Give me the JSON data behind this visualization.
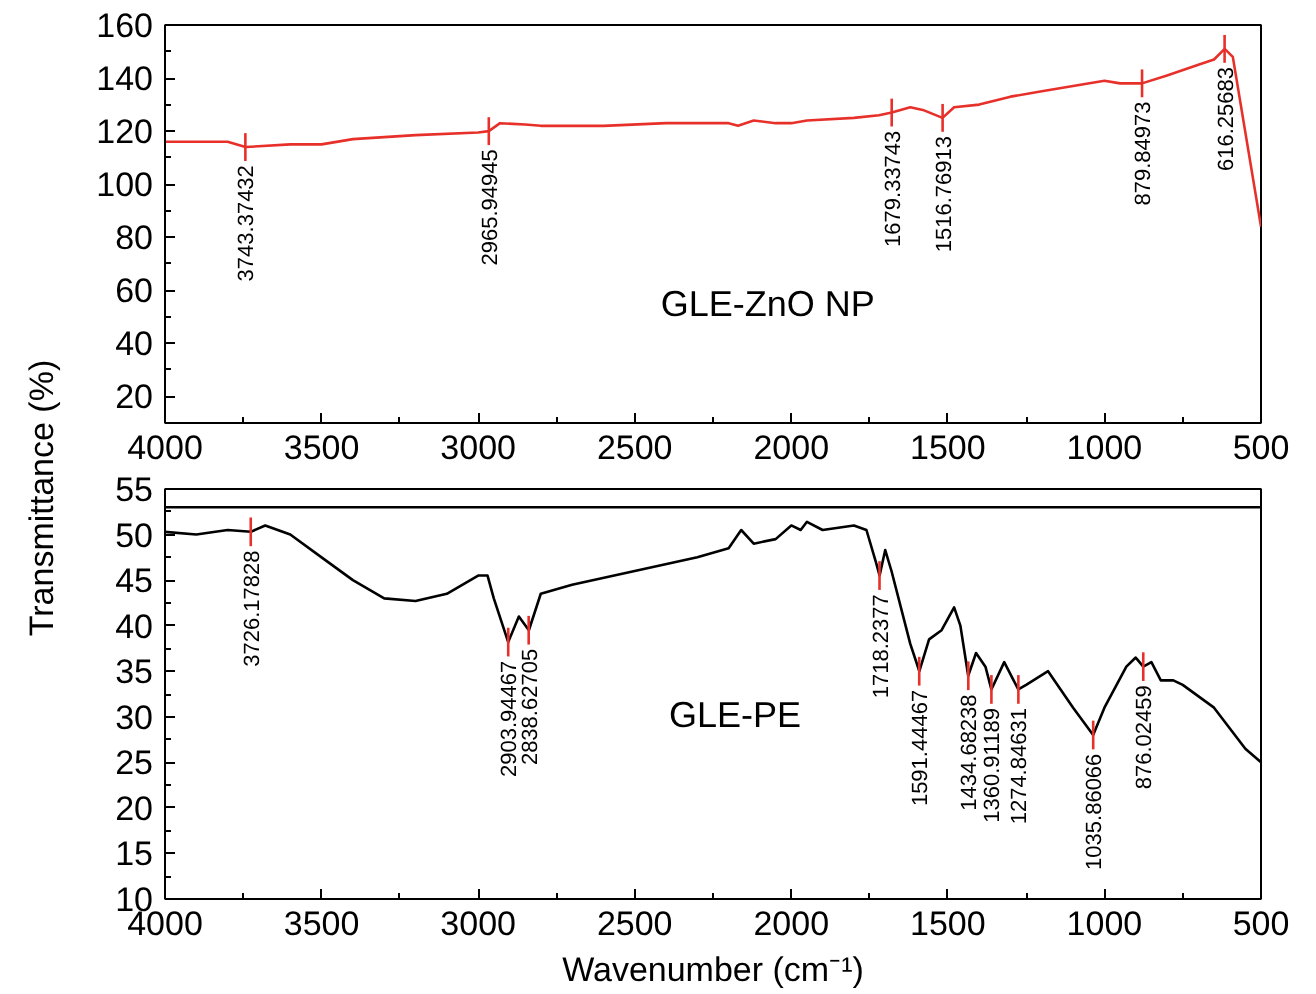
{
  "chart_data": [
    {
      "type": "line",
      "ylabel": "Transmittance (%)",
      "xlim": [
        4000,
        500
      ],
      "xticks": [
        4000,
        3500,
        3000,
        2500,
        2000,
        1500,
        1000,
        500
      ],
      "ylim": [
        10,
        160
      ],
      "yticks": [
        20,
        40,
        60,
        80,
        100,
        120,
        140,
        160
      ],
      "grid": false,
      "series": [
        {
          "name": "GLE-ZnO NP",
          "color": "#e8302a",
          "x": [
            4000,
            3800,
            3743,
            3600,
            3500,
            3400,
            3200,
            3000,
            2966,
            2930,
            2850,
            2800,
            2600,
            2400,
            2200,
            2170,
            2120,
            2050,
            2000,
            1950,
            1800,
            1720,
            1679,
            1620,
            1580,
            1517,
            1480,
            1400,
            1300,
            1200,
            1100,
            1000,
            950,
            880,
            800,
            700,
            650,
            616,
            590,
            500
          ],
          "values": [
            116,
            116,
            114,
            115,
            115,
            117,
            118.5,
            119.5,
            120,
            123,
            122.5,
            122,
            122,
            123,
            123,
            122,
            124,
            123,
            123,
            124,
            125,
            126,
            127,
            129,
            128,
            125,
            129,
            130,
            133,
            135,
            137,
            139,
            138,
            138,
            141,
            145,
            147,
            151,
            148,
            84
          ]
        }
      ],
      "annotations": [
        {
          "text": "3743.37432",
          "x": 3743.37432,
          "y": 114
        },
        {
          "text": "2965.94945",
          "x": 2965.94945,
          "y": 120
        },
        {
          "text": "1679.33743",
          "x": 1679.33743,
          "y": 127
        },
        {
          "text": "1516.76913",
          "x": 1516.76913,
          "y": 125
        },
        {
          "text": "879.84973",
          "x": 879.84973,
          "y": 138
        },
        {
          "text": "616.25683",
          "x": 616.25683,
          "y": 151
        }
      ]
    },
    {
      "type": "line",
      "xlabel": "Wavenumber (cm⁻¹)",
      "xlim": [
        4000,
        500
      ],
      "xticks": [
        4000,
        3500,
        3000,
        2500,
        2000,
        1500,
        1000,
        500
      ],
      "ylim": [
        10,
        55
      ],
      "yticks": [
        10,
        15,
        20,
        25,
        30,
        35,
        40,
        45,
        50,
        55
      ],
      "grid": false,
      "ref_lines": [
        {
          "axis": "y",
          "value": 53,
          "color": "#000000"
        }
      ],
      "series": [
        {
          "name": "GLE-PE",
          "color": "#000000",
          "x": [
            4000,
            3900,
            3800,
            3726,
            3680,
            3600,
            3500,
            3400,
            3300,
            3200,
            3100,
            3000,
            2970,
            2950,
            2904,
            2870,
            2838,
            2800,
            2700,
            2500,
            2300,
            2200,
            2160,
            2120,
            2050,
            2000,
            1970,
            1950,
            1900,
            1800,
            1760,
            1730,
            1718,
            1700,
            1680,
            1620,
            1591,
            1560,
            1520,
            1480,
            1460,
            1435,
            1410,
            1380,
            1361,
            1320,
            1290,
            1275,
            1250,
            1180,
            1100,
            1036,
            1000,
            930,
            900,
            876,
            850,
            820,
            780,
            750,
            650,
            550,
            500
          ],
          "values": [
            50.3,
            50,
            50.5,
            50.3,
            51,
            50,
            47.5,
            45,
            43,
            42.7,
            43.5,
            45.5,
            45.5,
            43,
            38.2,
            41,
            39.5,
            43.5,
            44.5,
            46,
            47.5,
            48.5,
            50.5,
            49,
            49.5,
            51,
            50.5,
            51.4,
            50.5,
            51,
            50.5,
            47,
            45.5,
            48.3,
            46,
            38,
            35,
            38.5,
            39.5,
            42,
            40,
            34.5,
            37,
            35.5,
            33,
            36,
            34,
            33,
            33.5,
            35,
            31,
            28,
            31,
            35.5,
            36.5,
            35.5,
            36,
            34,
            34,
            33.5,
            31,
            26.5,
            25
          ]
        }
      ],
      "annotations": [
        {
          "text": "3726.17828",
          "x": 3726.17828,
          "y": 50.3
        },
        {
          "text": "2903.94467",
          "x": 2903.94467,
          "y": 38.2
        },
        {
          "text": "2838.62705",
          "x": 2838.62705,
          "y": 39.5
        },
        {
          "text": "1718.2377",
          "x": 1718.2377,
          "y": 45.5
        },
        {
          "text": "1591.44467",
          "x": 1591.44467,
          "y": 35
        },
        {
          "text": "1434.68238",
          "x": 1434.68238,
          "y": 34.5
        },
        {
          "text": "1360.91189",
          "x": 1360.91189,
          "y": 33
        },
        {
          "text": "1274.84631",
          "x": 1274.84631,
          "y": 33
        },
        {
          "text": "1035.86066",
          "x": 1035.86066,
          "y": 28
        },
        {
          "text": "876.02459",
          "x": 876.02459,
          "y": 35.5
        }
      ]
    }
  ]
}
